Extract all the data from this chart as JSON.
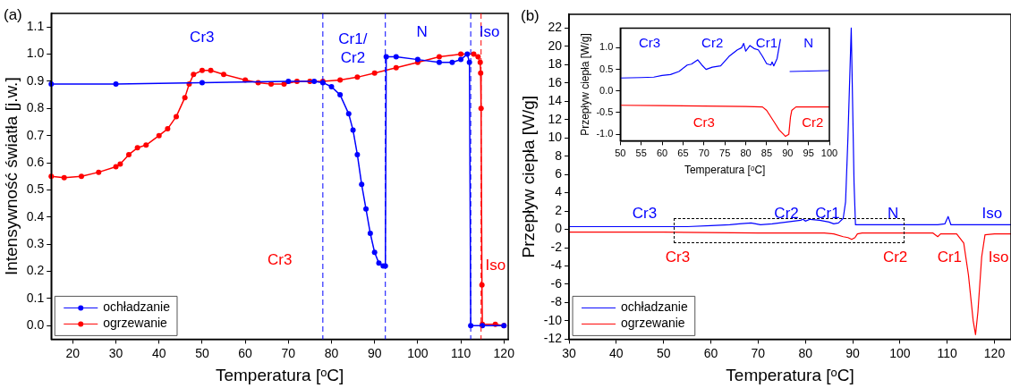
{
  "chart_data": [
    {
      "type": "line",
      "title": "(a)",
      "xlabel": "Temperatura [ᵒC]",
      "ylabel": "Intensywność światła [j.w.]",
      "xlim": [
        15,
        121
      ],
      "ylim": [
        -0.05,
        1.15
      ],
      "xticks": [
        20,
        30,
        40,
        50,
        60,
        70,
        80,
        90,
        100,
        110,
        120
      ],
      "yticks": [
        {
          "value": 0,
          "label": "0.0"
        },
        0.1,
        0.2,
        0.3,
        0.4,
        0.5,
        0.6,
        0.7,
        0.8,
        0.9,
        {
          "value": 1,
          "label": "1.0"
        },
        1.1
      ],
      "marker": "circle",
      "legend": "bottom left",
      "grid": false,
      "series": [
        {
          "name": "ochładzanie",
          "color": "#0000ff",
          "x": [
            15,
            30,
            50,
            70,
            76,
            78,
            80,
            82,
            84,
            85,
            86,
            87,
            88,
            89,
            90,
            91,
            92,
            92.5,
            92.7,
            95,
            100,
            105,
            108,
            110,
            111.5,
            112,
            112.3,
            115,
            120
          ],
          "values": [
            0.89,
            0.89,
            0.895,
            0.9,
            0.9,
            0.895,
            0.88,
            0.85,
            0.78,
            0.72,
            0.63,
            0.52,
            0.43,
            0.34,
            0.27,
            0.23,
            0.22,
            0.22,
            0.99,
            0.99,
            0.98,
            0.97,
            0.97,
            0.98,
            1.0,
            0.97,
            0.0,
            0.0,
            0.0
          ]
        },
        {
          "name": "ogrzewanie",
          "color": "#ff0000",
          "x": [
            15,
            18,
            22,
            26,
            30,
            31,
            33,
            35,
            37,
            40,
            42,
            44,
            46,
            47,
            48,
            50,
            52,
            55,
            60,
            63,
            66,
            69,
            72,
            75,
            78,
            82,
            86,
            90,
            95,
            100,
            105,
            110,
            113,
            114,
            114.5,
            114.6,
            114.7,
            114.9,
            115,
            118,
            120
          ],
          "values": [
            0.55,
            0.545,
            0.55,
            0.565,
            0.585,
            0.595,
            0.63,
            0.655,
            0.665,
            0.7,
            0.725,
            0.77,
            0.84,
            0.89,
            0.925,
            0.94,
            0.94,
            0.925,
            0.905,
            0.895,
            0.89,
            0.89,
            0.9,
            0.9,
            0.9,
            0.905,
            0.915,
            0.93,
            0.95,
            0.97,
            0.99,
            1.0,
            1.0,
            0.99,
            0.97,
            0.93,
            0.8,
            0.15,
            0.005,
            0.005,
            0.0
          ]
        }
      ],
      "ref_lines": [
        {
          "axis": "x",
          "value": 78,
          "color": "#0000ff",
          "line_style": "dashed"
        },
        {
          "axis": "x",
          "value": 92.5,
          "color": "#0000ff",
          "line_style": "dashed"
        },
        {
          "axis": "x",
          "value": 112.3,
          "color": "#0000ff",
          "line_style": "dashed"
        },
        {
          "axis": "x",
          "value": 114.7,
          "color": "#ff0000",
          "line_style": "dashed"
        }
      ],
      "annotations": [
        "Cr3",
        "Cr1/\nCr2",
        "N",
        "Iso",
        "Cr3",
        "Iso"
      ]
    },
    {
      "type": "line",
      "title": "(b)",
      "xlabel": "Temperatura [ᵒC]",
      "ylabel": "Przepływ ciepła [W/g]",
      "xlim": [
        30,
        123.5
      ],
      "ylim": [
        -12,
        23.5
      ],
      "xticks": [
        30,
        40,
        50,
        60,
        70,
        80,
        90,
        100,
        110,
        120
      ],
      "yticks": [
        -12,
        -10,
        -8,
        -6,
        -4,
        -2,
        0,
        2,
        4,
        6,
        8,
        10,
        12,
        14,
        16,
        18,
        20,
        22
      ],
      "legend": "bottom left",
      "grid": false,
      "series": [
        {
          "name": "ochładzanie",
          "color": "#0000ff",
          "x": [
            30,
            40,
            50,
            55,
            60,
            64,
            66,
            68.5,
            70.5,
            73,
            76,
            79,
            79.5,
            80,
            81,
            83,
            85,
            86,
            87,
            88,
            88.5,
            89,
            89.7,
            90.3,
            90.6,
            95,
            100,
            108,
            109.5,
            110.2,
            110.8,
            115,
            123.5
          ],
          "values": [
            0.3,
            0.3,
            0.3,
            0.3,
            0.4,
            0.5,
            0.6,
            0.7,
            0.5,
            0.6,
            0.8,
            1.0,
            1.1,
            0.9,
            1.1,
            1.0,
            0.8,
            0.6,
            0.7,
            1.2,
            3,
            10,
            22,
            5,
            0.5,
            0.5,
            0.5,
            0.5,
            0.6,
            1.4,
            0.5,
            0.5,
            0.5
          ]
        },
        {
          "name": "ogrzewanie",
          "color": "#ff0000",
          "x": [
            30,
            50,
            70,
            84,
            86,
            88,
            89,
            89.8,
            90.5,
            91,
            92,
            100,
            107,
            108,
            108.6,
            112,
            113.5,
            114.5,
            115.5,
            116,
            116.5,
            117.3,
            118,
            120,
            123.5
          ],
          "values": [
            -0.3,
            -0.3,
            -0.4,
            -0.4,
            -0.5,
            -0.8,
            -0.9,
            -1.1,
            -0.9,
            -0.5,
            -0.4,
            -0.4,
            -0.4,
            -0.8,
            -0.5,
            -0.5,
            -1.5,
            -5,
            -10,
            -11.5,
            -9,
            -3,
            -0.6,
            -0.5,
            -0.5
          ]
        }
      ],
      "annotations": [
        "Cr3",
        "Cr2",
        "Cr1",
        "N",
        "Iso",
        "Cr3",
        "Cr2",
        "Cr1",
        "Iso"
      ]
    },
    {
      "type": "line",
      "xlabel": "Temperatura [ᵒC]",
      "ylabel": "Przepływ ciepła [W/g]",
      "xlim": [
        50,
        100
      ],
      "ylim": [
        -1.15,
        1.45
      ],
      "xticks": [
        50,
        55,
        60,
        65,
        70,
        75,
        80,
        85,
        90,
        95,
        100
      ],
      "yticks": [
        {
          "value": -1,
          "label": "-1.0"
        },
        -0.5,
        {
          "value": 0,
          "label": "0.0"
        },
        0.5,
        {
          "value": 1,
          "label": "1.0"
        }
      ],
      "grid": false,
      "series": [
        {
          "color": "#0000ff",
          "x": [
            50,
            55,
            58,
            60,
            62,
            64,
            66,
            67,
            68.5,
            69.5,
            70.5,
            72,
            74,
            76,
            78,
            79,
            79.5,
            80,
            81,
            82,
            83,
            84,
            85,
            86,
            86.3,
            86.7,
            87.5,
            88.3,
            88.7,
            89.5,
            90.3,
            90.5,
            95,
            100
          ],
          "values": [
            0.3,
            0.31,
            0.32,
            0.36,
            0.38,
            0.45,
            0.6,
            0.62,
            0.72,
            0.6,
            0.5,
            0.55,
            0.58,
            0.8,
            0.95,
            1.0,
            1.1,
            0.92,
            1.05,
            0.98,
            0.95,
            0.8,
            0.63,
            0.6,
            0.67,
            0.58,
            0.75,
            1.2,
            null,
            null,
            null,
            0.45,
            0.46,
            0.47
          ]
        },
        {
          "color": "#ff0000",
          "x": [
            50,
            60,
            70,
            80,
            84,
            85,
            86,
            87,
            88,
            89,
            89.5,
            90.3,
            90.7,
            91,
            92,
            100
          ],
          "values": [
            -0.33,
            -0.34,
            -0.35,
            -0.36,
            -0.37,
            -0.45,
            -0.6,
            -0.75,
            -0.9,
            -1.0,
            -1.05,
            -1.0,
            -0.6,
            -0.45,
            -0.37,
            -0.37
          ]
        }
      ],
      "annotations": [
        "Cr3",
        "Cr2",
        "Cr1",
        "N",
        "Cr3",
        "Cr2"
      ]
    }
  ]
}
